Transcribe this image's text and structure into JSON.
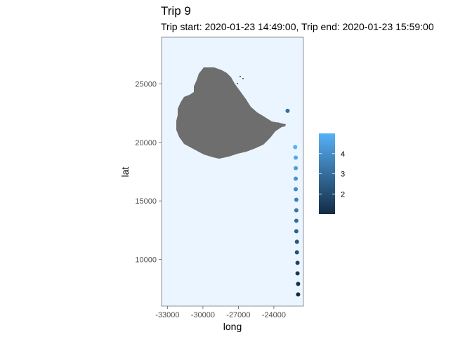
{
  "chart_data": {
    "type": "scatter",
    "title": "Trip 9",
    "subtitle": "Trip start: 2020-01-23 14:49:00, Trip end: 2020-01-23 15:59:00",
    "xlabel": "long",
    "ylabel": "lat",
    "xlim": [
      -33500,
      -21500
    ],
    "ylim": [
      6000,
      29000
    ],
    "x_ticks": [
      -33000,
      -30000,
      -27000,
      -24000
    ],
    "x_tick_labels": [
      "-33000",
      "-30000",
      "-27000",
      "-24000"
    ],
    "y_ticks": [
      10000,
      15000,
      20000,
      25000
    ],
    "y_tick_labels": [
      "10000",
      "15000",
      "20000",
      "25000"
    ],
    "panel_background": "#ebf5ff",
    "land_color": "#6e6e6e",
    "grid": false,
    "legend_position": "right",
    "legend": {
      "type": "colorbar",
      "range": [
        1,
        5
      ],
      "ticks": [
        2,
        3,
        4
      ],
      "tick_labels": [
        "2",
        "3",
        "4"
      ],
      "low_color": "#132b43",
      "high_color": "#56b1f7"
    },
    "points": [
      {
        "x": -22840,
        "y": 22700,
        "value": 3.0
      },
      {
        "x": -22200,
        "y": 19600,
        "value": 5.0
      },
      {
        "x": -22150,
        "y": 18700,
        "value": 4.7
      },
      {
        "x": -22150,
        "y": 17800,
        "value": 4.4
      },
      {
        "x": -22150,
        "y": 16900,
        "value": 4.1
      },
      {
        "x": -22150,
        "y": 16000,
        "value": 3.8
      },
      {
        "x": -22100,
        "y": 15100,
        "value": 3.5
      },
      {
        "x": -22100,
        "y": 14200,
        "value": 3.2
      },
      {
        "x": -22100,
        "y": 13300,
        "value": 2.9
      },
      {
        "x": -22100,
        "y": 12400,
        "value": 2.6
      },
      {
        "x": -22050,
        "y": 11500,
        "value": 2.3
      },
      {
        "x": -22050,
        "y": 10600,
        "value": 2.0
      },
      {
        "x": -22000,
        "y": 9700,
        "value": 1.7
      },
      {
        "x": -22000,
        "y": 8800,
        "value": 1.4
      },
      {
        "x": -21950,
        "y": 7900,
        "value": 1.2
      },
      {
        "x": -21950,
        "y": 7000,
        "value": 1.0
      }
    ]
  }
}
